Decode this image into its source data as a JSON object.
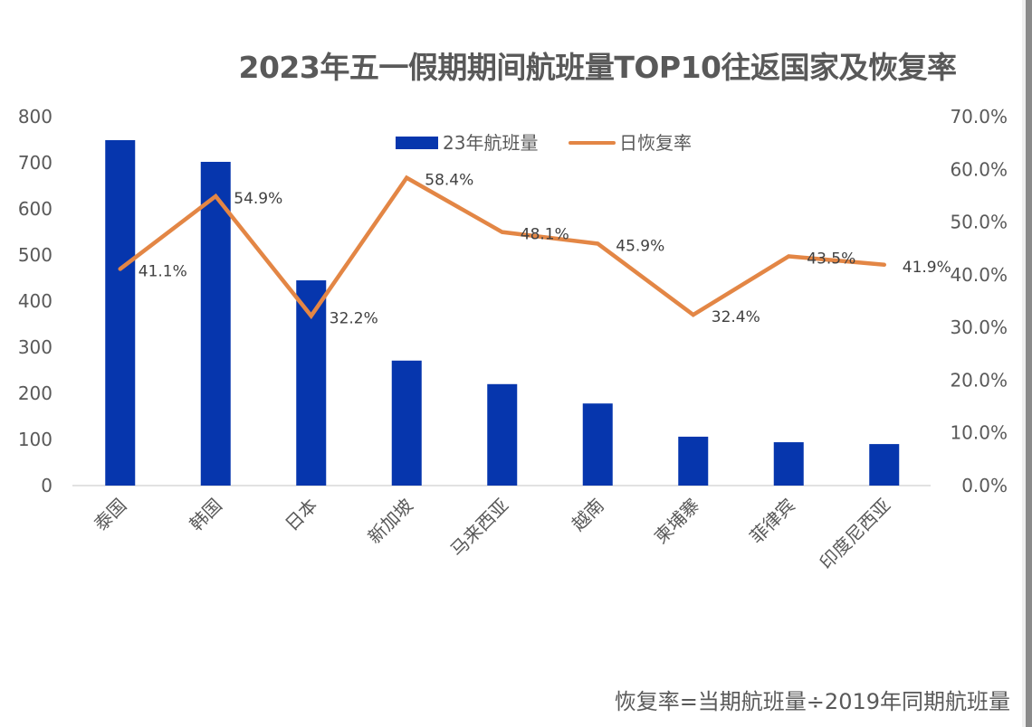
{
  "title": "2023年五一假期期间航班量TOP10往返国家及恢复率",
  "footnote": "恢复率=当期航班量÷2019年同期航班量",
  "colors": {
    "bar": "#0636AD",
    "line": "#E38645",
    "axis_text": "#595959",
    "axis_line": "#D9D9D9"
  },
  "chart_data": {
    "type": "bar+line",
    "title": "2023年五一假期期间航班量TOP10往返国家及恢复率",
    "categories": [
      "泰国",
      "韩国",
      "日本",
      "新加坡",
      "马来西亚",
      "越南",
      "柬埔寨",
      "菲律宾",
      "印度尼西亚"
    ],
    "series": [
      {
        "name": "23年航班量",
        "type": "bar",
        "axis": "left",
        "values": [
          749,
          702,
          445,
          271,
          220,
          178,
          106,
          94,
          90
        ]
      },
      {
        "name": "日恢复率",
        "type": "line",
        "axis": "right",
        "values": [
          41.1,
          54.9,
          32.2,
          58.4,
          48.1,
          45.9,
          32.4,
          43.5,
          41.9
        ],
        "labels": [
          "41.1%",
          "54.9%",
          "32.2%",
          "58.4%",
          "48.1%",
          "45.9%",
          "32.4%",
          "43.5%",
          "41.9%"
        ]
      }
    ],
    "y_left": {
      "ylim": [
        0,
        800
      ],
      "ticks": [
        "0",
        "100",
        "200",
        "300",
        "400",
        "500",
        "600",
        "700",
        "800"
      ]
    },
    "y_right": {
      "ylim": [
        0,
        70
      ],
      "ticks": [
        "0.0%",
        "10.0%",
        "20.0%",
        "30.0%",
        "40.0%",
        "50.0%",
        "60.0%",
        "70.0%"
      ]
    },
    "xlabel": "",
    "ylabel": "",
    "grid": false,
    "legend": {
      "placement": "top-center",
      "entries": [
        "23年航班量",
        "日恢复率"
      ]
    }
  }
}
